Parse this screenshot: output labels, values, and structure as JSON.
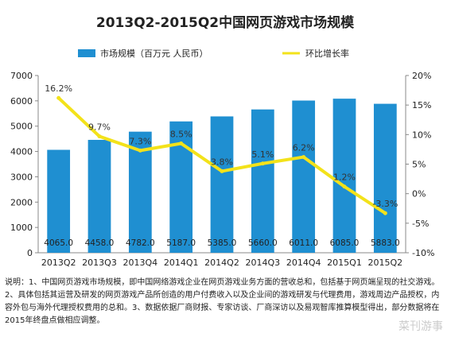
{
  "chart_data": {
    "type": "bar+line",
    "title": "2013Q2-2015Q2中国网页游戏市场规模",
    "categories": [
      "2013Q2",
      "2013Q3",
      "2013Q4",
      "2014Q1",
      "2014Q2",
      "2014Q3",
      "2014Q4",
      "2015Q1",
      "2015Q2"
    ],
    "bar_series": {
      "name": "市场规模（百万元 人民币）",
      "color": "#1f8fd1",
      "values": [
        4065.0,
        4458.0,
        4782.0,
        5187.0,
        5385.0,
        5660.0,
        6011.0,
        6085.0,
        5883.0
      ],
      "labels": [
        "4065.0",
        "4458.0",
        "4782.0",
        "5187.0",
        "5385.0",
        "5660.0",
        "6011.0",
        "6085.0",
        "5883.0"
      ]
    },
    "line_series": {
      "name": "环比增长率",
      "color": "#f3e21a",
      "values": [
        16.2,
        9.7,
        7.3,
        8.5,
        3.8,
        5.1,
        6.2,
        1.2,
        -3.3
      ],
      "labels": [
        "16.2%",
        "9.7%",
        "7.3%",
        "8.5%",
        "3.8%",
        "5.1%",
        "6.2%",
        "1.2%",
        "-3.3%"
      ]
    },
    "y_left": {
      "ylim": [
        0,
        7000
      ],
      "ticks": [
        0,
        1000,
        2000,
        3000,
        4000,
        5000,
        6000,
        7000
      ]
    },
    "y_right": {
      "ylim": [
        -10,
        20
      ],
      "ticks": [
        "-10%",
        "-5%",
        "0%",
        "5%",
        "10%",
        "15%",
        "20%"
      ]
    },
    "legend_position": "top"
  },
  "note": "说明：1、中国网页游戏市场规模，即中国网络游戏企业在网页游戏业务方面的营收总和，包括基于网页端呈现的社交游戏。2、具体包括其运营及研发的网页游戏产品所创造的用户付费收入以及企业间的游戏研发与代理费用，游戏周边产品授权，内容外包与海外代理授权费用的总和。3、数据依据厂商财报、专家访谈、厂商深访以及易观智库推算模型得出，部分数据将在2015年终盘点做相应调整。",
  "watermark": "菜刊游事"
}
